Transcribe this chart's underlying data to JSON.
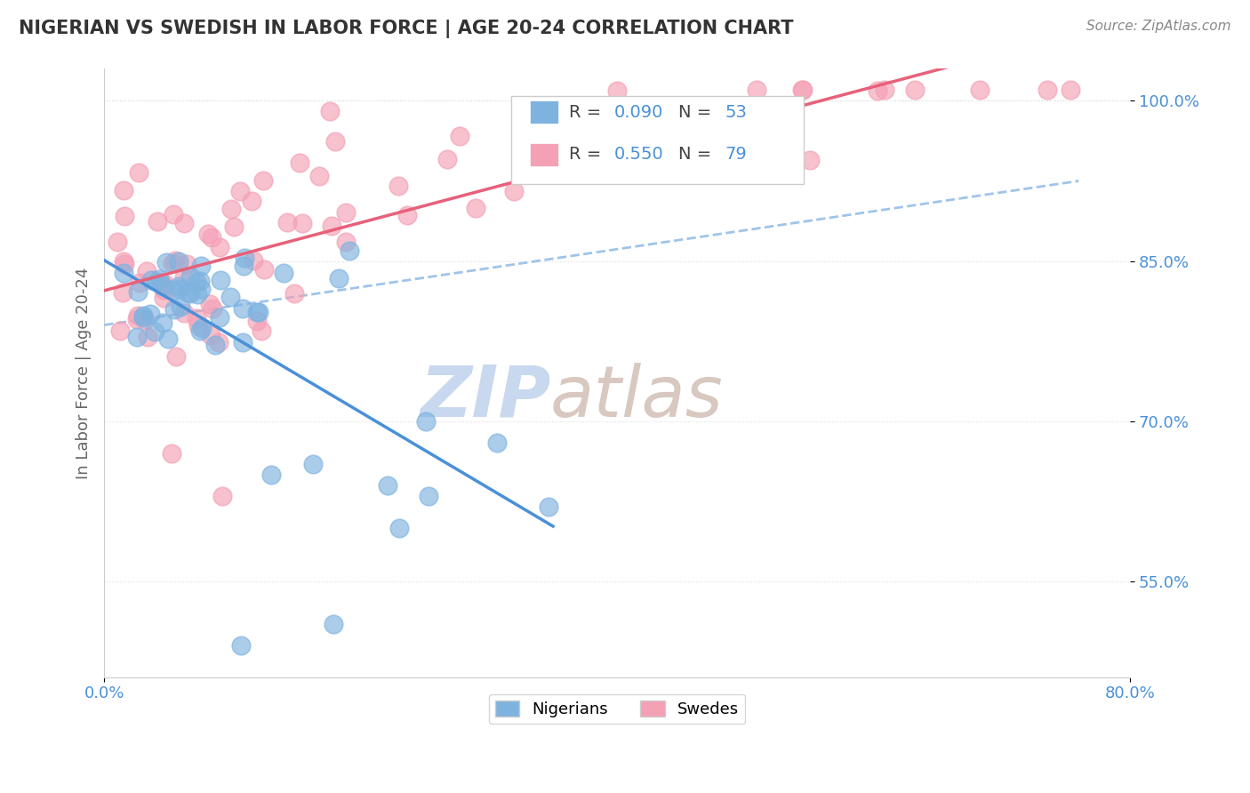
{
  "title": "NIGERIAN VS SWEDISH IN LABOR FORCE | AGE 20-24 CORRELATION CHART",
  "source_text": "Source: ZipAtlas.com",
  "ylabel": "In Labor Force | Age 20-24",
  "xlim": [
    0.0,
    0.8
  ],
  "ylim": [
    0.46,
    1.03
  ],
  "xtick_labels": [
    "0.0%",
    "80.0%"
  ],
  "ytick_labels": [
    "55.0%",
    "70.0%",
    "85.0%",
    "100.0%"
  ],
  "yticks": [
    0.55,
    0.7,
    0.85,
    1.0
  ],
  "legend_r1": "0.090",
  "legend_n1": "53",
  "legend_r2": "0.550",
  "legend_n2": "79",
  "blue_color": "#7eb3e0",
  "pink_color": "#f4a0b5",
  "blue_line_color": "#4a90d9",
  "pink_line_color": "#e8607a",
  "dashed_line_color": "#a0c4e8",
  "watermark_zip_color": "#c8d8ee",
  "watermark_atlas_color": "#d8c8c0",
  "background_color": "#ffffff",
  "title_color": "#333333",
  "source_color": "#888888",
  "tick_color": "#4a90d9",
  "ylabel_color": "#666666"
}
